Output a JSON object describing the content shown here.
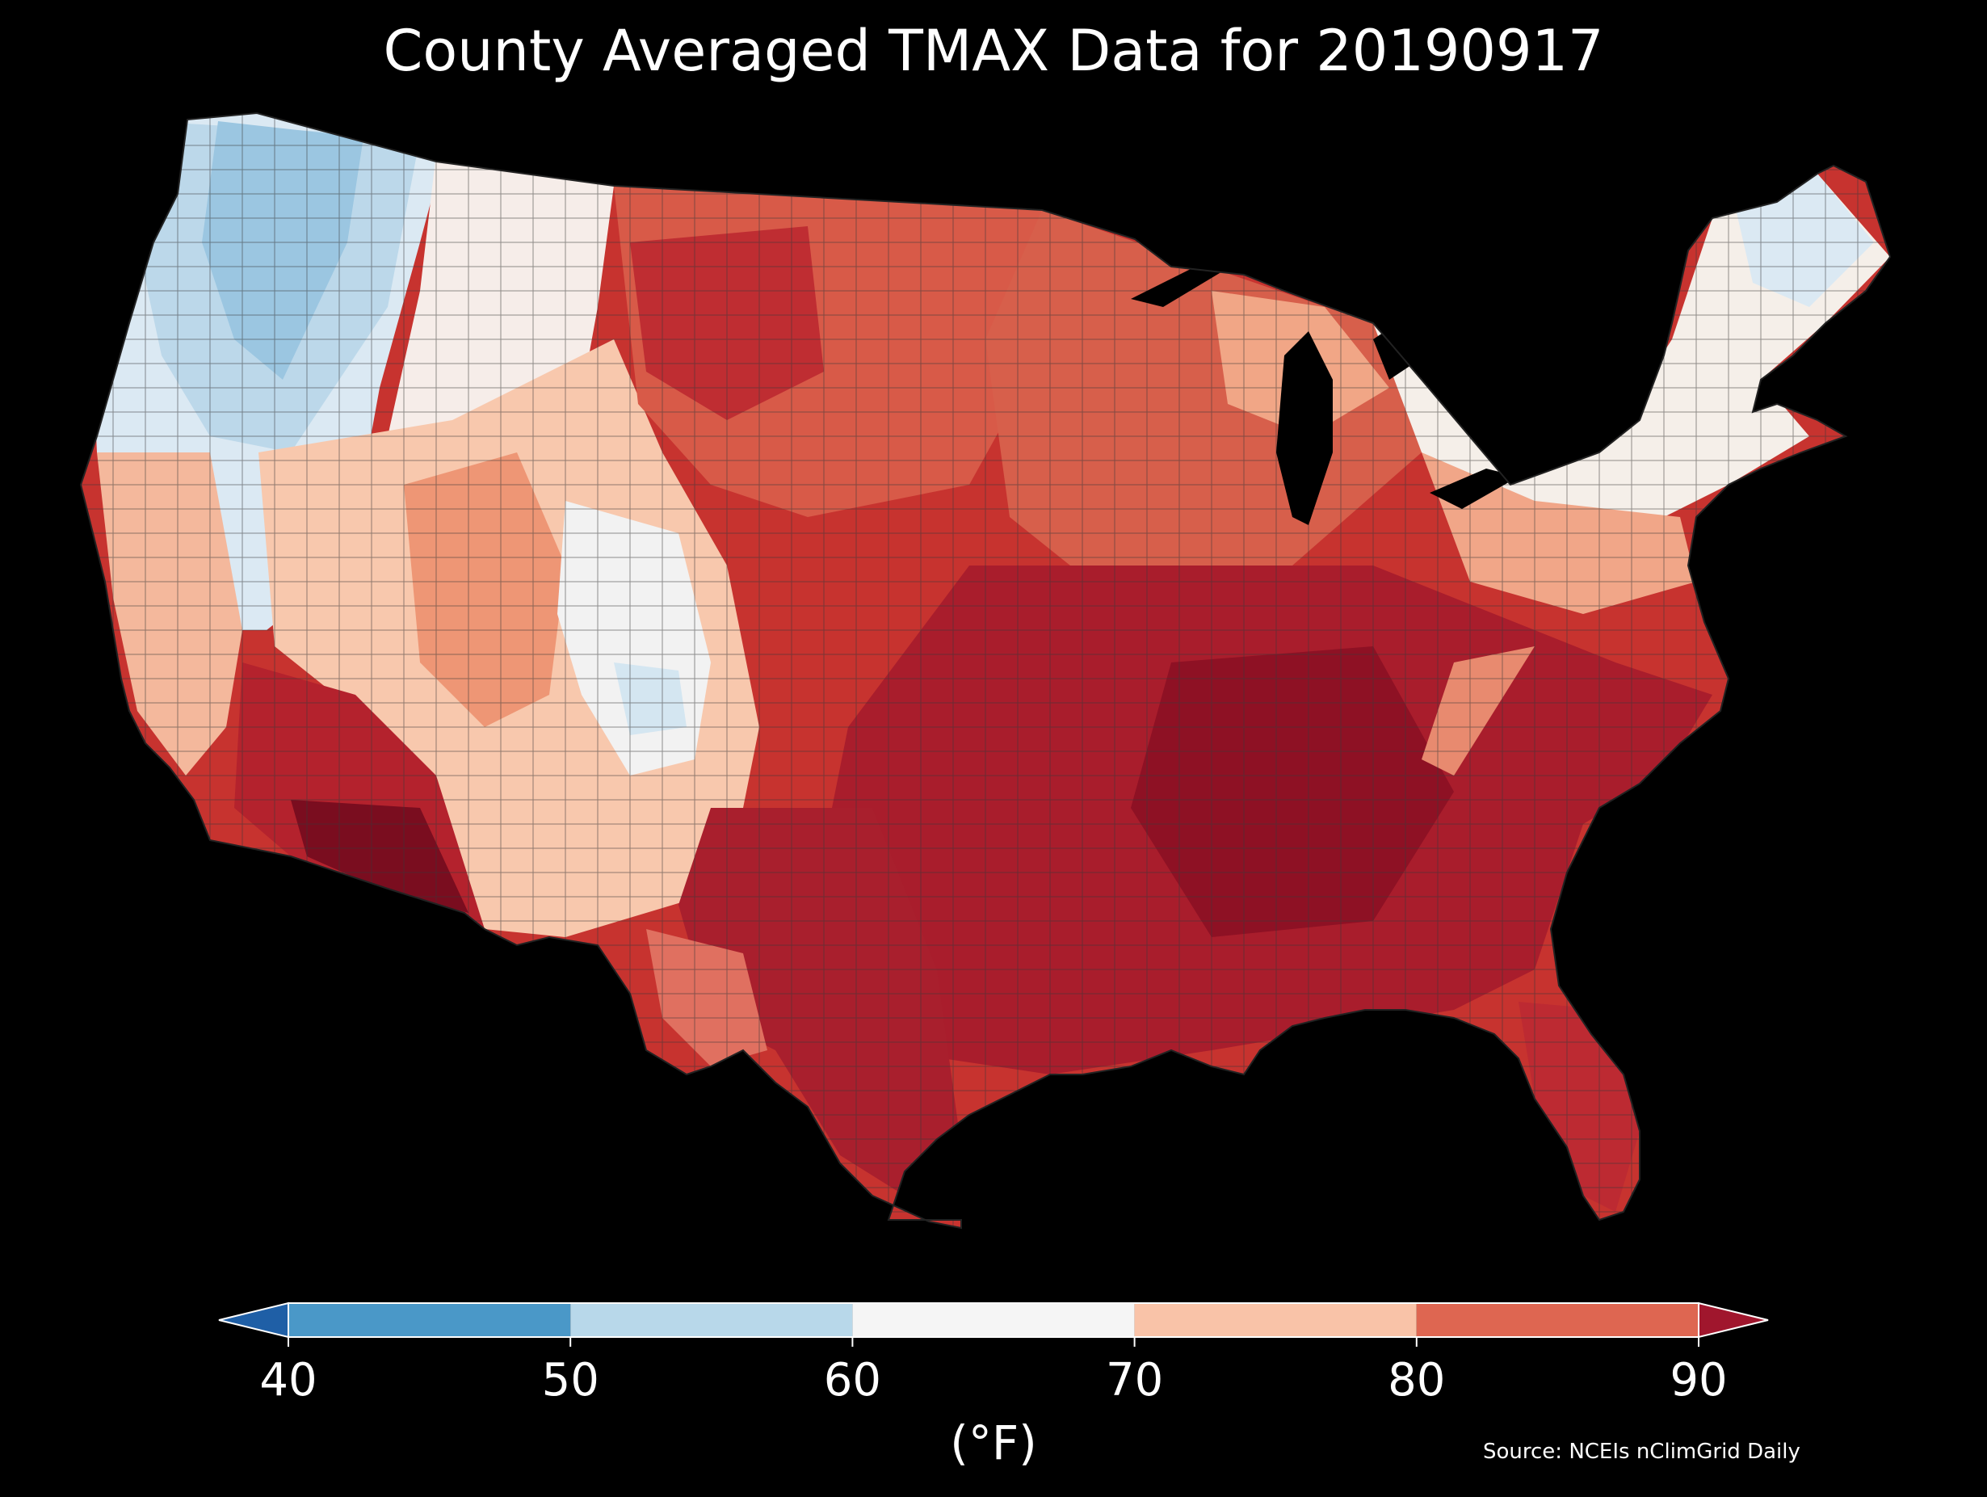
{
  "title": "County Averaged TMAX Data for 20190917",
  "source": "Source: NCEIs nClimGrid Daily",
  "colorbar": {
    "unit_label": "(°F)",
    "tick_labels": [
      "40",
      "50",
      "60",
      "70",
      "80",
      "90"
    ],
    "bins": [
      {
        "range": "below 40",
        "color": "#1f5fa6"
      },
      {
        "range": "40-50",
        "color": "#4a98c8"
      },
      {
        "range": "50-60",
        "color": "#b8d8ea"
      },
      {
        "range": "60-70",
        "color": "#f5f5f5"
      },
      {
        "range": "70-80",
        "color": "#f9c3a8"
      },
      {
        "range": "80-90",
        "color": "#de6651"
      },
      {
        "range": "above 90",
        "color": "#a0162d"
      }
    ]
  },
  "map": {
    "region": "Contiguous United States, county level",
    "background": "#000000",
    "county_border_color": "#3a3a3a"
  }
}
